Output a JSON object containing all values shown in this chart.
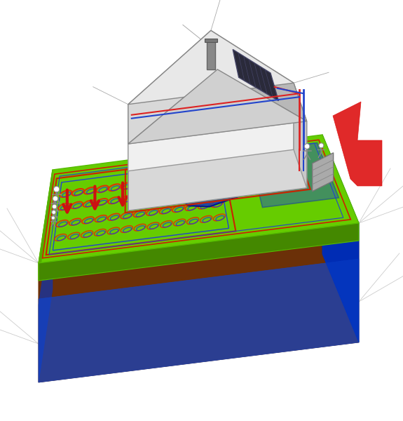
{
  "bg_color": "#ffffff",
  "grass_top": "#66cc00",
  "grass_left": "#55aa00",
  "grass_right": "#448800",
  "soil_left": "#8B4513",
  "soil_right": "#6B3008",
  "underground_left_top": "#8B4513",
  "underground_left_bot": "#1133aa",
  "underground_right_top": "#6B3008",
  "underground_right_bot": "#0022aa",
  "bottom_blue": "#1122cc",
  "house_wall_white": "#f0f0f0",
  "house_wall_left": "#e0e0e0",
  "house_wall_right": "#c8c8c8",
  "house_roof_left": "#d8d8d8",
  "house_roof_right": "#b8b8b8",
  "solar_dark": "#2a2a3a",
  "chimney_gray": "#888888",
  "red_pipe": "#dd2222",
  "blue_pipe": "#2244cc",
  "red_arrow": "#cc1111",
  "blue_flow": "#1133bb",
  "floor_red": "#dd3333",
  "floor_blue": "#3355dd",
  "coil_red": "#dd3300",
  "coil_blue": "#2244cc",
  "ac_color": "#aaaaaa",
  "figure_outline": "#888888",
  "sketch_line": "#cccccc",
  "green_outline": "#55bb00",
  "red_outline": "#cc2200"
}
